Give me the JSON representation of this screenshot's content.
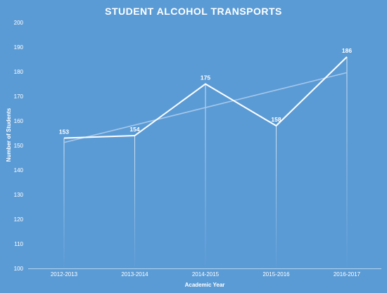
{
  "chart_data": {
    "type": "line",
    "title": "STUDENT ALCOHOL TRANSPORTS",
    "xlabel": "Academic Year",
    "ylabel": "Number of Students",
    "categories": [
      "2012-2013",
      "2013-2014",
      "2014-2015",
      "2015-2016",
      "2016-2017"
    ],
    "series": [
      {
        "values": [
          153,
          154,
          175,
          158,
          186
        ],
        "data_labels": [
          "153",
          "154",
          "175",
          "158",
          "186"
        ]
      }
    ],
    "trendline": {
      "type": "linear",
      "start": 151.2,
      "end": 179.6
    },
    "yticks": [
      "100",
      "110",
      "120",
      "130",
      "140",
      "150",
      "160",
      "170",
      "180",
      "190",
      "200"
    ],
    "ylim": [
      100,
      200
    ],
    "grid": false,
    "legend": "none",
    "colors": {
      "background": "#5b9bd5",
      "line": "#ffffff",
      "trend": "#a9c9ec",
      "drop_line": "#ffffff"
    }
  }
}
